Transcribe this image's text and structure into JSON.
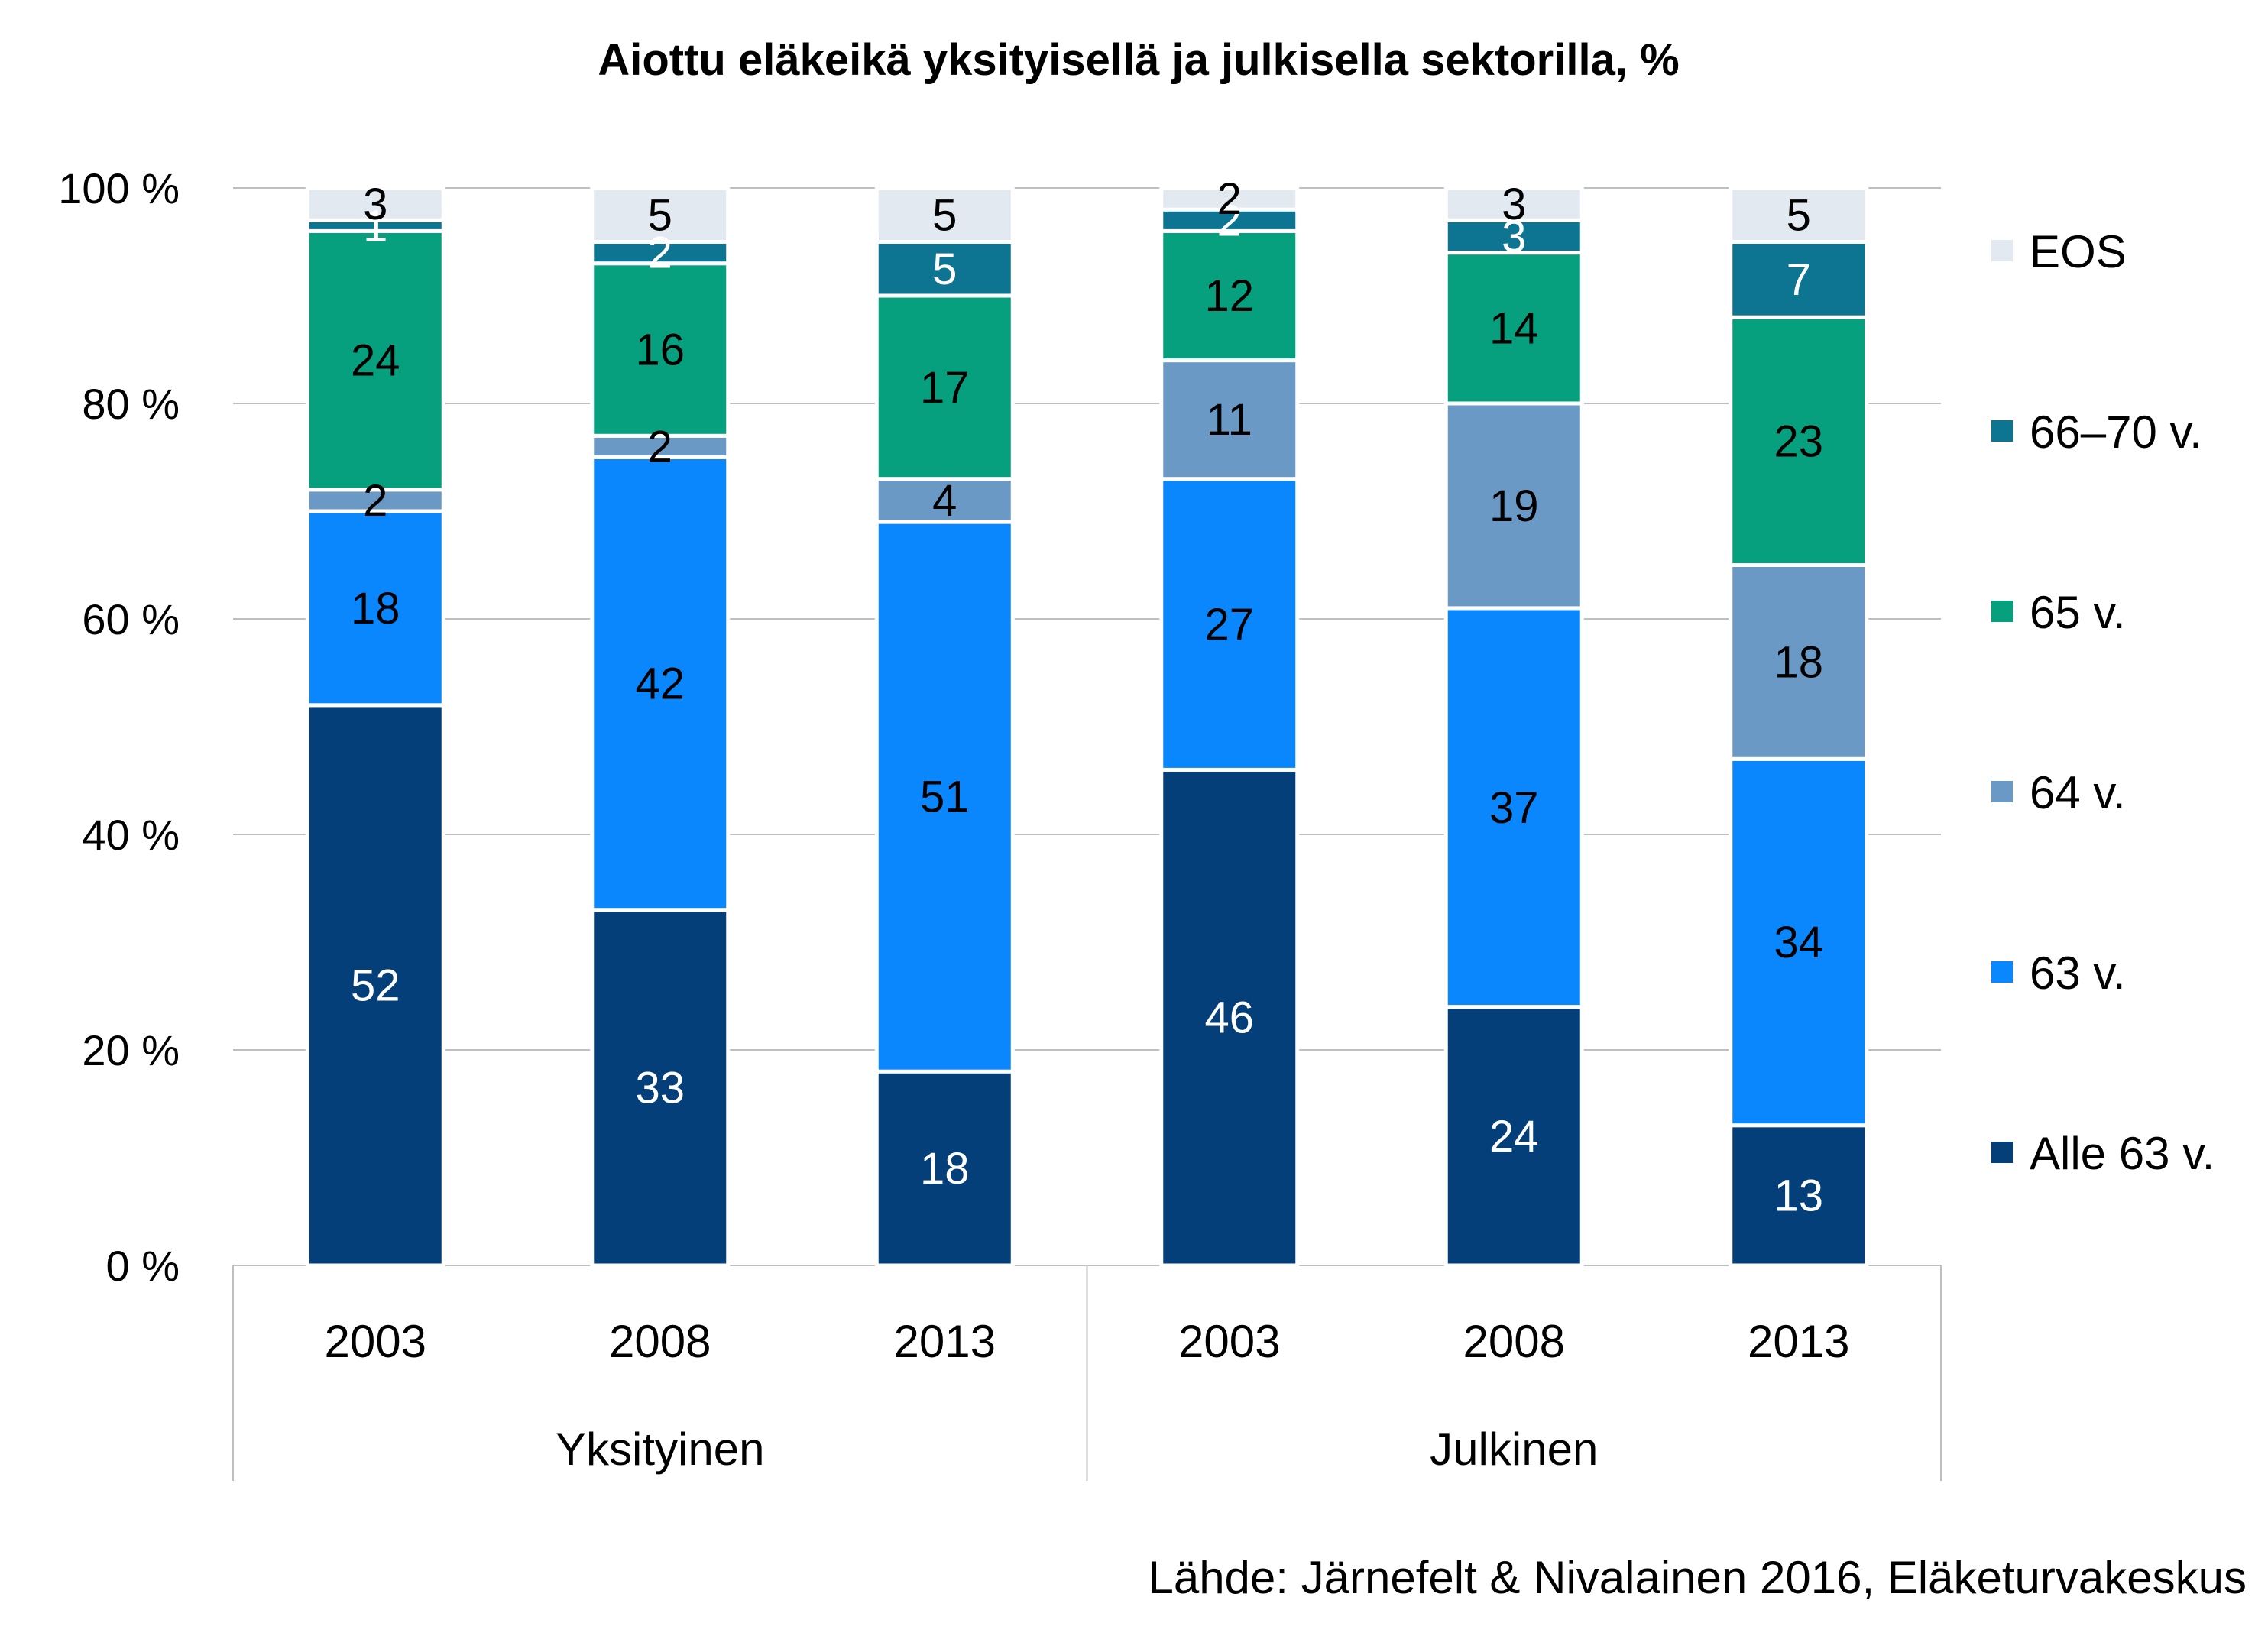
{
  "chart_data": {
    "type": "bar",
    "stacked": true,
    "title": "Aiottu eläkeikä yksityisellä ja julkisella sektorilla, %",
    "ylim": [
      0,
      100
    ],
    "y_ticks": [
      "0 %",
      "20 %",
      "40 %",
      "60 %",
      "80 %",
      "100 %"
    ],
    "y_tick_values": [
      0,
      20,
      40,
      60,
      80,
      100
    ],
    "grid": true,
    "legend_position": "right",
    "groups": [
      {
        "label": "Yksityinen",
        "categories": [
          "2003",
          "2008",
          "2013"
        ]
      },
      {
        "label": "Julkinen",
        "categories": [
          "2003",
          "2008",
          "2013"
        ]
      }
    ],
    "categories": [
      "2003",
      "2008",
      "2013",
      "2003",
      "2008",
      "2013"
    ],
    "series": [
      {
        "name": "Alle 63 v.",
        "color": "#053f7a",
        "label_color": "#ffffff",
        "values": [
          52,
          33,
          18,
          46,
          24,
          13
        ]
      },
      {
        "name": "63 v.",
        "color": "#0a87fc",
        "label_color": "#000000",
        "values": [
          18,
          42,
          51,
          27,
          37,
          34
        ]
      },
      {
        "name": "64 v.",
        "color": "#6a99c6",
        "label_color": "#000000",
        "values": [
          2,
          2,
          4,
          11,
          19,
          18
        ]
      },
      {
        "name": "65 v.",
        "color": "#06a07e",
        "label_color": "#000000",
        "values": [
          24,
          16,
          17,
          12,
          14,
          23
        ]
      },
      {
        "name": "66–70 v.",
        "color": "#0d7492",
        "label_color": "#ffffff",
        "values": [
          1,
          2,
          5,
          2,
          3,
          7
        ]
      },
      {
        "name": "EOS",
        "color": "#e3e9f1",
        "label_color": "#000000",
        "values": [
          3,
          5,
          5,
          2,
          3,
          5
        ]
      }
    ],
    "source": "Lähde: Järnefelt & Nivalainen 2016, Eläketurvakeskus"
  }
}
